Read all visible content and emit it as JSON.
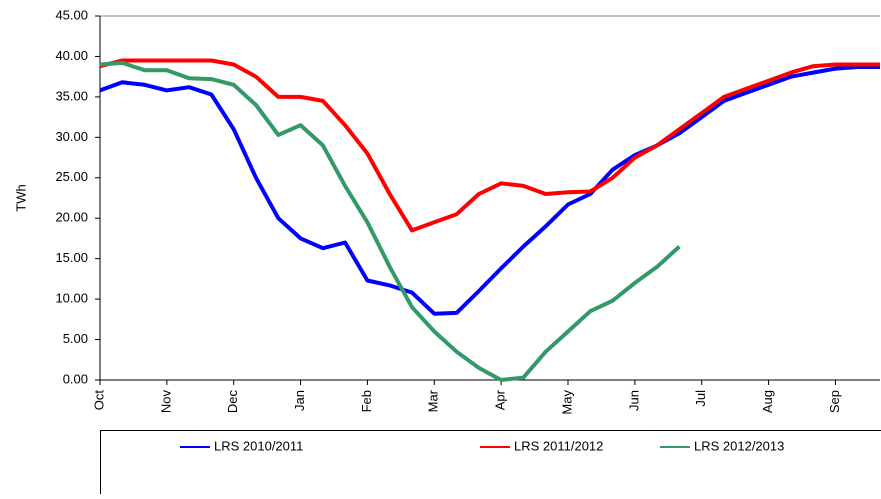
{
  "chart_data": {
    "type": "line",
    "ylabel": "TWh",
    "categories": [
      "Oct",
      null,
      null,
      "Nov",
      null,
      null,
      "Dec",
      null,
      null,
      "Jan",
      null,
      null,
      "Feb",
      null,
      null,
      "Mar",
      null,
      null,
      "Apr",
      null,
      null,
      "May",
      null,
      null,
      "Jun",
      null,
      null,
      "Jul",
      null,
      null,
      "Aug",
      null,
      null,
      "Sep",
      null,
      null
    ],
    "series": [
      {
        "name": "LRS 2010/2011",
        "color": "#0000ff",
        "values": [
          35.8,
          36.8,
          36.5,
          35.8,
          36.2,
          35.3,
          31,
          25,
          20,
          17.5,
          16.3,
          17,
          12.3,
          11.7,
          10.8,
          8.2,
          8.3,
          11,
          13.8,
          16.5,
          19,
          21.7,
          23,
          26,
          27.8,
          29,
          30.5,
          32.5,
          34.5,
          35.5,
          36.5,
          37.5,
          38,
          38.5,
          38.7,
          38.7
        ]
      },
      {
        "name": "LRS 2011/2012",
        "color": "#ff0000",
        "values": [
          38.8,
          39.5,
          39.5,
          39.5,
          39.5,
          39.5,
          39,
          37.5,
          35,
          35,
          34.5,
          31.5,
          28,
          23,
          18.5,
          19.5,
          20.5,
          23,
          24.3,
          24,
          23,
          23.2,
          23.3,
          25,
          27.5,
          29,
          31,
          33,
          35,
          36,
          37,
          38,
          38.8,
          39,
          39,
          39
        ]
      },
      {
        "name": "LRS 2012/2013",
        "color": "#339966",
        "values": [
          39,
          39.2,
          38.3,
          38.3,
          37.3,
          37.2,
          36.5,
          34,
          30.3,
          31.5,
          29,
          24,
          19.5,
          14,
          9,
          6,
          3.5,
          1.5,
          0,
          0.3,
          3.5,
          6,
          8.5,
          9.8,
          12,
          14,
          16.5,
          null,
          null,
          null,
          null,
          null,
          null,
          null,
          null,
          null
        ]
      }
    ],
    "ylim": [
      0,
      45
    ],
    "yticks": [
      {
        "value": 0,
        "label": "0.00"
      },
      {
        "value": 5,
        "label": "5.00"
      },
      {
        "value": 10,
        "label": "10.00"
      },
      {
        "value": 15,
        "label": "15.00"
      },
      {
        "value": 20,
        "label": "20.00"
      },
      {
        "value": 25,
        "label": "25.00"
      },
      {
        "value": 30,
        "label": "30.00"
      },
      {
        "value": 35,
        "label": "35.00"
      },
      {
        "value": 40,
        "label": "40.00"
      },
      {
        "value": 45,
        "label": "45.00"
      }
    ],
    "grid": false,
    "legend": "bottom"
  }
}
